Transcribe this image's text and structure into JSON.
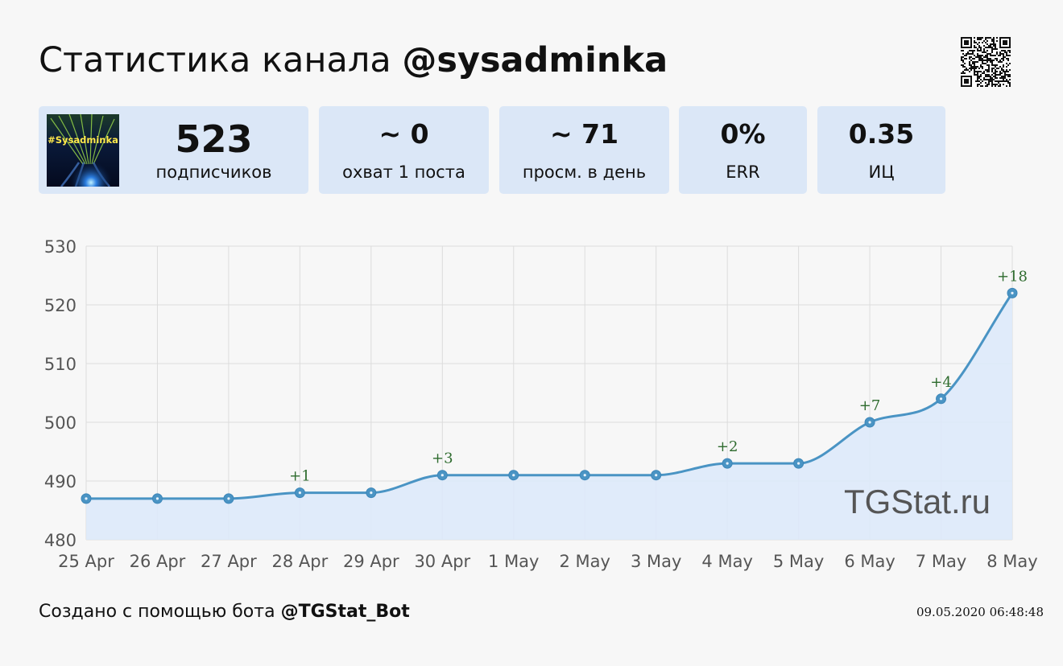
{
  "header": {
    "title_prefix": "Статистика канала",
    "channel": "@sysadminka"
  },
  "avatar": {
    "text": "#Sysadminka"
  },
  "stats": [
    {
      "value": "523",
      "label": "подписчиков"
    },
    {
      "value": "~ 0",
      "label": "охват 1 поста"
    },
    {
      "value": "~ 71",
      "label": "просм. в день"
    },
    {
      "value": "0%",
      "label": "ERR"
    },
    {
      "value": "0.35",
      "label": "ИЦ"
    }
  ],
  "chart_data": {
    "type": "area",
    "categories": [
      "25 Apr",
      "26 Apr",
      "27 Apr",
      "28 Apr",
      "29 Apr",
      "30 Apr",
      "1 May",
      "2 May",
      "3 May",
      "4 May",
      "5 May",
      "6 May",
      "7 May",
      "8 May"
    ],
    "series": [
      {
        "values": [
          487,
          487,
          487,
          488,
          488,
          491,
          491,
          491,
          491,
          493,
          493,
          500,
          504,
          522
        ]
      }
    ],
    "annotations": [
      "",
      "",
      "",
      "+1",
      "",
      "+3",
      "",
      "",
      "",
      "+2",
      "",
      "+7",
      "+4",
      "+18"
    ],
    "y_ticks": [
      480,
      490,
      500,
      510,
      520,
      530
    ],
    "ylim": [
      480,
      530
    ],
    "grid": true,
    "watermark": "TGStat.ru",
    "colors": {
      "line": "#4a94c4",
      "fill": "#dde9fa",
      "annotation": "#2e6b2e",
      "grid": "#dcdcdc"
    }
  },
  "footer": {
    "prefix": "Создано с помощью бота",
    "bot": "@TGStat_Bot",
    "datetime": "09.05.2020 06:48:48"
  }
}
